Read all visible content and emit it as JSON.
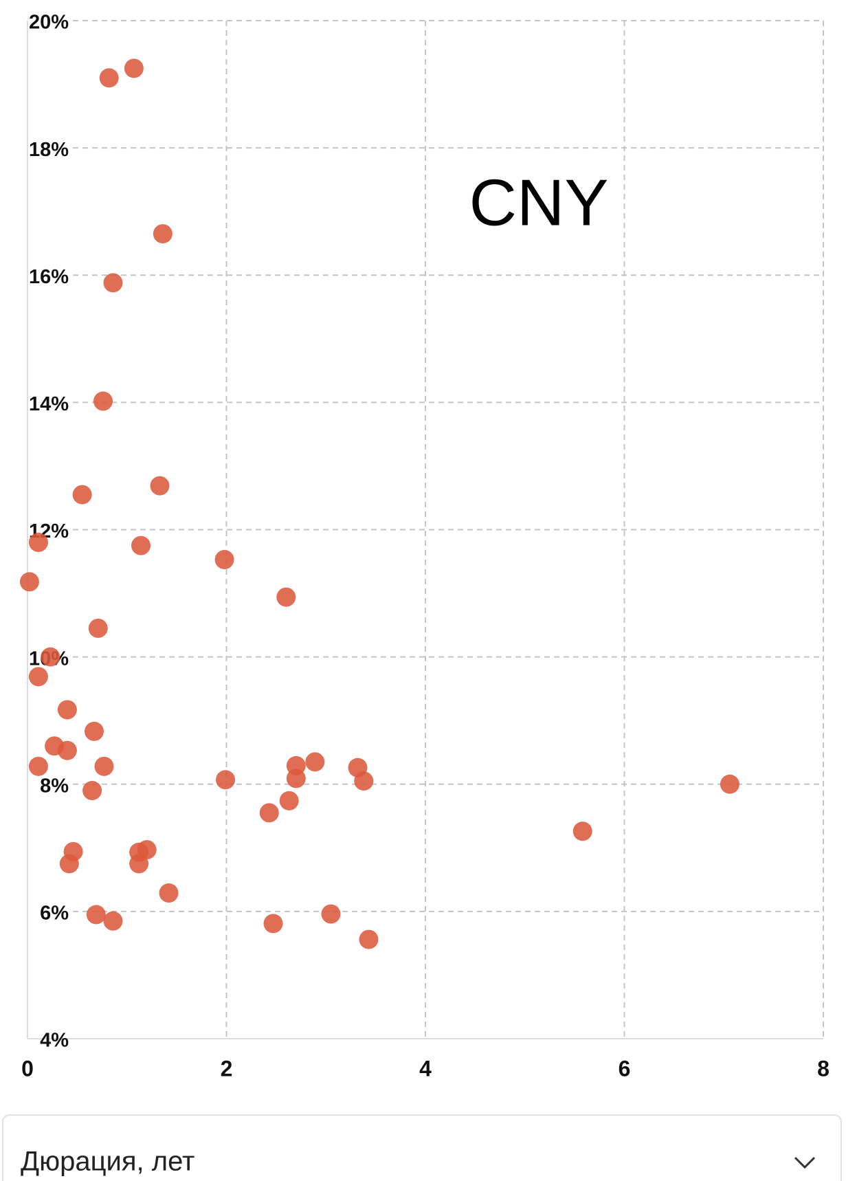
{
  "chart_data": {
    "type": "scatter",
    "annotation": "CNY",
    "xlabel": "Дюрация, лет",
    "color": "#dc5a3c",
    "grid": true,
    "xlim": [
      0,
      8
    ],
    "xticks": [
      0,
      2,
      4,
      6,
      8
    ],
    "ylim": [
      4,
      20
    ],
    "yticks": [
      {
        "value": 4,
        "label": "4%"
      },
      {
        "value": 6,
        "label": "6%"
      },
      {
        "value": 8,
        "label": "8%"
      },
      {
        "value": 10,
        "label": "10%"
      },
      {
        "value": 12,
        "label": "12%"
      },
      {
        "value": 14,
        "label": "14%"
      },
      {
        "value": 16,
        "label": "16%"
      },
      {
        "value": 18,
        "label": "18%"
      },
      {
        "value": 20,
        "label": "20%"
      }
    ],
    "x": [
      0.82,
      1.07,
      1.36,
      0.86,
      0.76,
      0.55,
      1.33,
      0.11,
      1.14,
      1.98,
      0.02,
      2.6,
      0.71,
      0.23,
      0.11,
      0.4,
      0.67,
      0.27,
      0.4,
      0.11,
      0.77,
      0.65,
      1.99,
      2.7,
      2.7,
      2.89,
      3.32,
      3.38,
      2.63,
      2.43,
      7.06,
      5.58,
      0.46,
      0.42,
      1.12,
      1.2,
      1.12,
      1.42,
      0.69,
      0.86,
      2.47,
      3.05,
      3.43
    ],
    "values": [
      19.1,
      19.25,
      16.65,
      15.88,
      14.02,
      12.55,
      12.69,
      11.8,
      11.75,
      11.53,
      11.18,
      10.94,
      10.45,
      10.0,
      9.69,
      9.17,
      8.83,
      8.6,
      8.53,
      8.28,
      8.28,
      7.9,
      8.07,
      8.29,
      8.09,
      8.35,
      8.26,
      8.05,
      7.74,
      7.55,
      8.0,
      7.26,
      6.94,
      6.75,
      6.93,
      6.97,
      6.75,
      6.29,
      5.95,
      5.85,
      5.81,
      5.96,
      5.56
    ]
  }
}
